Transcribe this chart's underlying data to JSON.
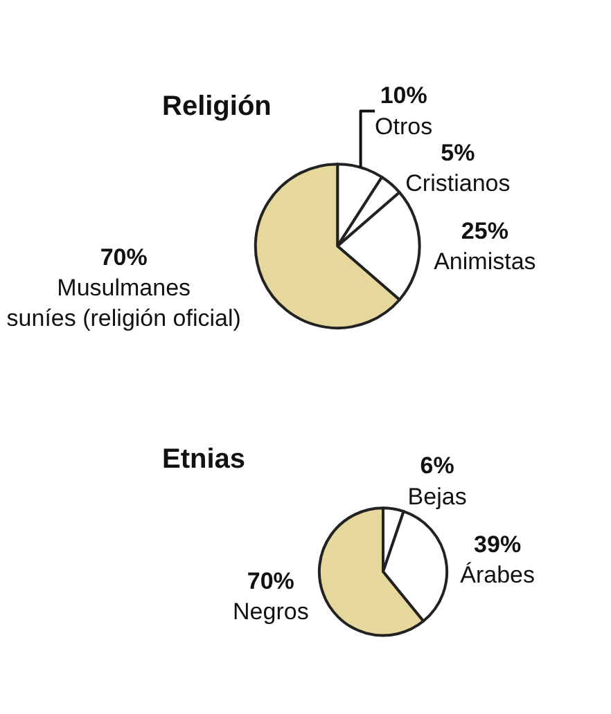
{
  "chart_data": [
    {
      "type": "pie",
      "title": "Religión",
      "categories": [
        "Otros",
        "Cristianos",
        "Animistas",
        "Musulmanes suníes (religión oficial)"
      ],
      "values": [
        10,
        5,
        25,
        70
      ],
      "value_labels": [
        "10%",
        "5%",
        "25%",
        "70%"
      ],
      "colors": [
        "#ffffff",
        "#ffffff",
        "#ffffff",
        "#e6d89c"
      ]
    },
    {
      "type": "pie",
      "title": "Etnias",
      "categories": [
        "Bejas",
        "Árabes",
        "Negros"
      ],
      "values": [
        6,
        39,
        70
      ],
      "value_labels": [
        "6%",
        "39%",
        "70%"
      ],
      "colors": [
        "#ffffff",
        "#ffffff",
        "#e6d89c"
      ]
    }
  ]
}
